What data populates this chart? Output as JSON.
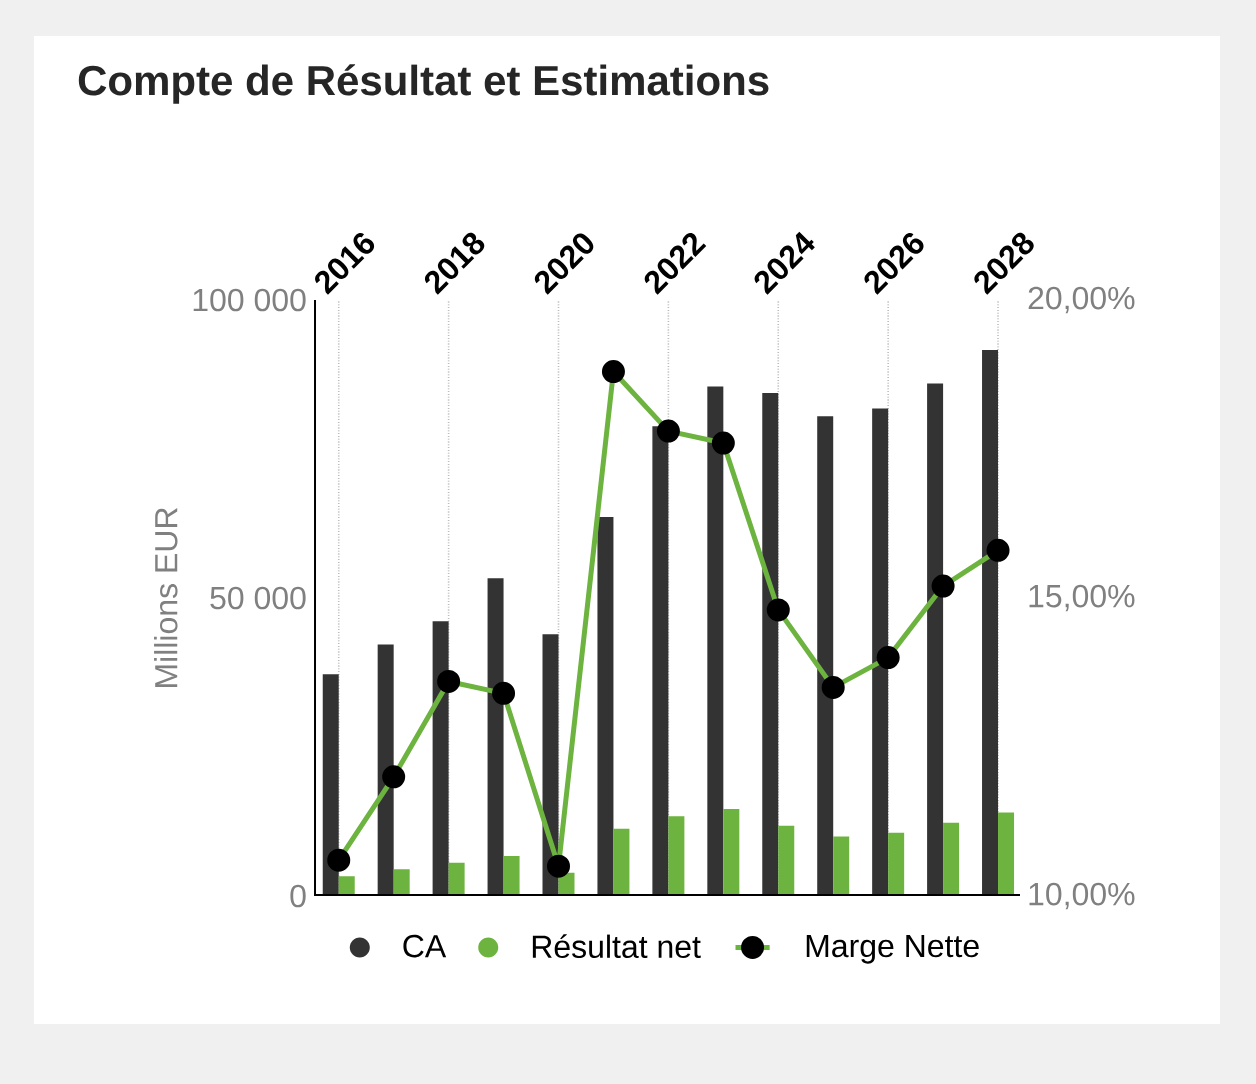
{
  "chart_data": {
    "type": "bar",
    "title": "Compte de Résultat et Estimations",
    "categories": [
      "2016",
      null,
      "2018",
      null,
      "2020",
      null,
      "2022",
      null,
      "2024",
      null,
      "2026",
      null,
      "2028"
    ],
    "series": [
      {
        "name": "CA",
        "color": "#333333",
        "values": [
          37200,
          42200,
          46100,
          53300,
          43900,
          63600,
          78800,
          85500,
          84400,
          80500,
          81800,
          86000,
          91600
        ]
      },
      {
        "name": "Résultat net",
        "color": "#6db33f",
        "values": [
          3300,
          4500,
          5600,
          6700,
          3900,
          11300,
          13400,
          14600,
          11800,
          10000,
          10600,
          12300,
          14000
        ]
      },
      {
        "name": "Marge Nette",
        "type": "line",
        "axis": "y2",
        "color": "#6db33f",
        "marker": "circle",
        "line_style": "solid",
        "values": [
          10.6,
          12.0,
          13.6,
          13.4,
          10.5,
          18.8,
          17.8,
          17.6,
          14.8,
          13.5,
          14.0,
          15.2,
          15.8
        ]
      }
    ],
    "ylabel": "Millions EUR",
    "ylim": [
      0,
      100000
    ],
    "yticks": [
      0,
      {
        "value": 50000,
        "label": "50 000"
      },
      {
        "value": 100000,
        "label": "100 000"
      }
    ],
    "y2lim": [
      10,
      20
    ],
    "y2ticks": [
      {
        "value": 10,
        "label": "10,00%"
      },
      {
        "value": 15,
        "label": "15,00%"
      },
      {
        "value": 20,
        "label": "20,00%"
      }
    ],
    "grid": "x",
    "legend": "bottom"
  }
}
